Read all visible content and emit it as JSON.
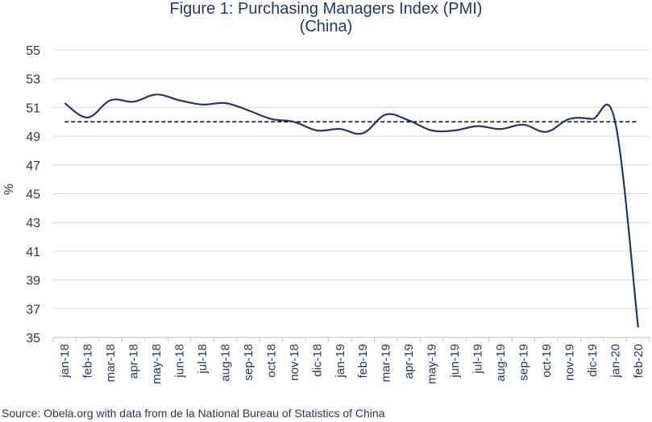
{
  "chart_data": {
    "type": "line",
    "title": "Figure 1: Purchasing Managers Index (PMI)",
    "subtitle": "(China)",
    "ylabel": "%",
    "xlabel": "",
    "ylim": [
      35,
      55
    ],
    "yticks": [
      35,
      37,
      39,
      41,
      43,
      45,
      47,
      49,
      51,
      53,
      55
    ],
    "grid": true,
    "categories": [
      "jan-18",
      "feb-18",
      "mar-18",
      "apr-18",
      "may-18",
      "jun-18",
      "jul-18",
      "aug-18",
      "sep-18",
      "oct-18",
      "nov-18",
      "dic-18",
      "jan-19",
      "feb-19",
      "mar-19",
      "apr-19",
      "may-19",
      "jun-19",
      "jul-19",
      "aug-19",
      "sep-19",
      "oct-19",
      "nov-19",
      "dic-19",
      "jan-20",
      "feb-20"
    ],
    "series": [
      {
        "name": "PMI",
        "color": "#1f3864",
        "values": [
          51.3,
          50.3,
          51.5,
          51.4,
          51.9,
          51.5,
          51.2,
          51.3,
          50.8,
          50.2,
          50.0,
          49.4,
          49.5,
          49.2,
          50.5,
          50.1,
          49.4,
          49.4,
          49.7,
          49.5,
          49.8,
          49.3,
          50.2,
          50.2,
          50.0,
          35.7
        ]
      }
    ],
    "reference_line": {
      "value": 50,
      "style": "dashed",
      "color": "#000000"
    }
  },
  "footer": {
    "source": "Source: Obela.org with data from de la National Bureau of Statistics of China"
  }
}
